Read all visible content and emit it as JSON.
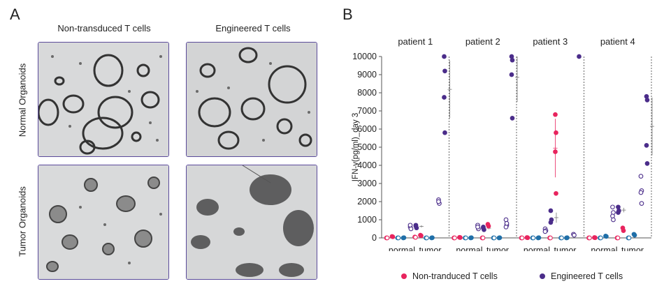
{
  "panel_a": {
    "letter": "A",
    "col_titles": [
      "Non-transduced T cells",
      "Engineered T cells"
    ],
    "row_titles": [
      "Normal Organoids",
      "Tumor Organoids"
    ]
  },
  "panel_b": {
    "letter": "B"
  },
  "colors": {
    "nontransduced": "#e8245e",
    "engineered": "#4b2d8a",
    "control": "#1f6fa8",
    "frame": "#5a4a9a"
  },
  "chart_data": {
    "type": "scatter",
    "ylabel": "IFN-γ(pg/ml)_day 3",
    "ylim": [
      0,
      10000
    ],
    "yticks": [
      0,
      1000,
      2000,
      3000,
      4000,
      5000,
      6000,
      7000,
      8000,
      9000,
      10000
    ],
    "facets": [
      "patient 1",
      "patient 2",
      "patient 3",
      "patient 4"
    ],
    "categories": [
      "normal",
      "tumor"
    ],
    "legend": [
      "Non-tranduced T cells",
      "Engineered T cells"
    ],
    "legend_position": "bottom",
    "groups": {
      "patient 1": {
        "normal": {
          "open_pink": [
            0,
            0
          ],
          "filled_pink": [
            80,
            60
          ],
          "open_blue": [
            0,
            0
          ],
          "filled_blue": [
            0,
            10
          ],
          "open_purple": [
            600,
            500,
            700
          ],
          "filled_purple": [
            700,
            550,
            650
          ]
        },
        "tumor": {
          "open_pink": [
            50,
            30
          ],
          "filled_pink": [
            150,
            120
          ],
          "open_blue": [
            0,
            0
          ],
          "filled_blue": [
            0,
            10
          ],
          "open_purple": [
            2100,
            1900,
            2000
          ],
          "filled_purple": [
            10000,
            9200,
            7750,
            5800
          ]
        }
      },
      "patient 2": {
        "normal": {
          "open_pink": [
            0,
            0
          ],
          "filled_pink": [
            30,
            20
          ],
          "open_blue": [
            0,
            0
          ],
          "filled_blue": [
            0,
            10
          ],
          "open_purple": [
            700,
            500,
            600
          ],
          "filled_purple": [
            600,
            450,
            550
          ]
        },
        "tumor": {
          "open_pink": [
            0,
            0
          ],
          "filled_pink": [
            750,
            650
          ],
          "open_blue": [
            0,
            0
          ],
          "filled_blue": [
            0,
            10
          ],
          "open_purple": [
            1000,
            700,
            600,
            800
          ],
          "filled_purple": [
            10000,
            9800,
            9000,
            6600
          ]
        }
      },
      "patient 3": {
        "normal": {
          "open_pink": [
            0,
            0
          ],
          "filled_pink": [
            20,
            10
          ],
          "open_blue": [
            0,
            0
          ],
          "filled_blue": [
            0,
            10
          ],
          "open_purple": [
            500,
            400,
            350
          ],
          "filled_purple": [
            1500,
            1000,
            850
          ]
        },
        "tumor": {
          "open_pink": [
            0,
            0
          ],
          "filled_pink": [
            6800,
            5800,
            4750,
            2450
          ],
          "open_blue": [
            0,
            0
          ],
          "filled_blue": [
            0,
            10
          ],
          "open_purple": [
            200,
            150
          ],
          "filled_purple": [
            10000
          ]
        }
      },
      "patient 4": {
        "normal": {
          "open_pink": [
            0,
            0
          ],
          "filled_pink": [
            20,
            10
          ],
          "open_blue": [
            0,
            0
          ],
          "filled_blue": [
            100,
            80
          ],
          "open_purple": [
            1700,
            1400,
            1200,
            1000
          ],
          "filled_purple": [
            1700,
            1500,
            1400
          ]
        },
        "tumor": {
          "open_pink": [
            0,
            0
          ],
          "filled_pink": [
            550,
            400
          ],
          "open_blue": [
            0,
            0
          ],
          "filled_blue": [
            200,
            150
          ],
          "open_purple": [
            3400,
            2600,
            2500,
            1900
          ],
          "filled_purple": [
            7800,
            7600,
            5100,
            4100
          ]
        }
      }
    }
  }
}
